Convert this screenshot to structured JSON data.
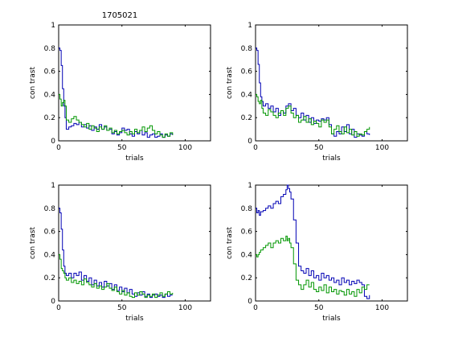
{
  "figure": {
    "title": "1705021",
    "series_colors": [
      "#0000b4",
      "#009600"
    ]
  },
  "chart_data": [
    {
      "type": "line",
      "title": "1705021",
      "xlabel": "trials",
      "ylabel": "con trast",
      "xlim": [
        0,
        120
      ],
      "ylim": [
        0,
        1
      ],
      "xticks": [
        0,
        50,
        100
      ],
      "yticks": [
        0,
        0.2,
        0.4,
        0.6,
        0.8,
        1
      ],
      "ytick_labels": [
        "0",
        "0.2",
        "0.4",
        "0.6",
        "0.8",
        "1"
      ],
      "grid": false,
      "series": [
        {
          "color": "#0000b4",
          "x": [
            0,
            1,
            2,
            3,
            4,
            5,
            6,
            8,
            10,
            12,
            14,
            16,
            18,
            20,
            22,
            24,
            26,
            28,
            30,
            32,
            34,
            36,
            38,
            40,
            42,
            44,
            46,
            48,
            50,
            52,
            54,
            56,
            58,
            60,
            62,
            64,
            66,
            68,
            70,
            72,
            74,
            76,
            78,
            80,
            82,
            84,
            86,
            88,
            90
          ],
          "y": [
            0.8,
            0.78,
            0.65,
            0.45,
            0.3,
            0.2,
            0.1,
            0.12,
            0.13,
            0.15,
            0.14,
            0.16,
            0.12,
            0.14,
            0.11,
            0.13,
            0.09,
            0.12,
            0.1,
            0.14,
            0.1,
            0.12,
            0.09,
            0.1,
            0.06,
            0.08,
            0.05,
            0.07,
            0.11,
            0.09,
            0.1,
            0.06,
            0.04,
            0.08,
            0.06,
            0.09,
            0.05,
            0.07,
            0.03,
            0.05,
            0.06,
            0.03,
            0.04,
            0.06,
            0.03,
            0.05,
            0.04,
            0.06,
            0.05
          ]
        },
        {
          "color": "#009600",
          "x": [
            0,
            1,
            2,
            3,
            4,
            5,
            6,
            8,
            10,
            12,
            14,
            16,
            18,
            20,
            22,
            24,
            26,
            28,
            30,
            32,
            34,
            36,
            38,
            40,
            42,
            44,
            46,
            48,
            50,
            52,
            54,
            56,
            58,
            60,
            62,
            64,
            66,
            68,
            70,
            72,
            74,
            76,
            78,
            80,
            82,
            84,
            86,
            88,
            90
          ],
          "y": [
            0.4,
            0.36,
            0.3,
            0.33,
            0.35,
            0.3,
            0.18,
            0.16,
            0.19,
            0.21,
            0.18,
            0.16,
            0.14,
            0.12,
            0.15,
            0.1,
            0.13,
            0.11,
            0.08,
            0.12,
            0.1,
            0.13,
            0.09,
            0.11,
            0.07,
            0.09,
            0.06,
            0.08,
            0.09,
            0.07,
            0.05,
            0.08,
            0.06,
            0.1,
            0.07,
            0.09,
            0.12,
            0.08,
            0.11,
            0.13,
            0.09,
            0.06,
            0.08,
            0.05,
            0.03,
            0.06,
            0.04,
            0.07,
            0.05
          ]
        }
      ]
    },
    {
      "type": "line",
      "xlabel": "trials",
      "ylabel": "con trast",
      "xlim": [
        0,
        120
      ],
      "ylim": [
        0,
        1
      ],
      "xticks": [
        0,
        50,
        100
      ],
      "yticks": [
        0,
        0.2,
        0.4,
        0.6,
        0.8,
        1
      ],
      "ytick_labels": [
        "0",
        "0.2",
        "0.4",
        "0.6",
        "0.8",
        "1"
      ],
      "grid": false,
      "series": [
        {
          "color": "#0000b4",
          "x": [
            0,
            1,
            2,
            3,
            4,
            5,
            6,
            8,
            10,
            12,
            14,
            16,
            18,
            20,
            22,
            24,
            26,
            28,
            30,
            32,
            34,
            36,
            38,
            40,
            42,
            44,
            46,
            48,
            50,
            52,
            54,
            56,
            58,
            60,
            62,
            64,
            66,
            68,
            70,
            72,
            74,
            76,
            78,
            80,
            82,
            84,
            86,
            88,
            90
          ],
          "y": [
            0.8,
            0.78,
            0.66,
            0.5,
            0.38,
            0.34,
            0.3,
            0.32,
            0.28,
            0.3,
            0.25,
            0.28,
            0.22,
            0.26,
            0.24,
            0.3,
            0.32,
            0.26,
            0.28,
            0.22,
            0.2,
            0.24,
            0.18,
            0.22,
            0.16,
            0.2,
            0.15,
            0.18,
            0.17,
            0.19,
            0.18,
            0.2,
            0.14,
            0.06,
            0.04,
            0.08,
            0.06,
            0.12,
            0.08,
            0.14,
            0.06,
            0.1,
            0.03,
            0.06,
            0.05,
            0.04,
            0.08,
            0.06,
            0.05
          ]
        },
        {
          "color": "#009600",
          "x": [
            0,
            1,
            2,
            3,
            4,
            5,
            6,
            8,
            10,
            12,
            14,
            16,
            18,
            20,
            22,
            24,
            26,
            28,
            30,
            32,
            34,
            36,
            38,
            40,
            42,
            44,
            46,
            48,
            50,
            52,
            54,
            56,
            58,
            60,
            62,
            64,
            66,
            68,
            70,
            72,
            74,
            76,
            78,
            80,
            82,
            84,
            86,
            88,
            90
          ],
          "y": [
            0.4,
            0.38,
            0.34,
            0.32,
            0.35,
            0.28,
            0.24,
            0.22,
            0.27,
            0.25,
            0.22,
            0.2,
            0.24,
            0.26,
            0.22,
            0.28,
            0.3,
            0.24,
            0.2,
            0.22,
            0.16,
            0.18,
            0.21,
            0.16,
            0.19,
            0.14,
            0.17,
            0.15,
            0.12,
            0.18,
            0.16,
            0.18,
            0.12,
            0.06,
            0.1,
            0.13,
            0.08,
            0.06,
            0.12,
            0.07,
            0.1,
            0.05,
            0.08,
            0.04,
            0.06,
            0.05,
            0.08,
            0.1,
            0.12
          ]
        }
      ]
    },
    {
      "type": "line",
      "xlabel": "trials",
      "ylabel": "con trast",
      "xlim": [
        0,
        120
      ],
      "ylim": [
        0,
        1
      ],
      "xticks": [
        0,
        50,
        100
      ],
      "yticks": [
        0,
        0.2,
        0.4,
        0.6,
        0.8,
        1
      ],
      "ytick_labels": [
        "0",
        "0.2",
        "0.4",
        "0.6",
        "0.8",
        "1"
      ],
      "grid": false,
      "series": [
        {
          "color": "#0000b4",
          "x": [
            0,
            1,
            2,
            3,
            4,
            5,
            6,
            8,
            10,
            12,
            14,
            16,
            18,
            20,
            22,
            24,
            26,
            28,
            30,
            32,
            34,
            36,
            38,
            40,
            42,
            44,
            46,
            48,
            50,
            52,
            54,
            56,
            58,
            60,
            62,
            64,
            66,
            68,
            70,
            72,
            74,
            76,
            78,
            80,
            82,
            84,
            86,
            88,
            90
          ],
          "y": [
            0.8,
            0.76,
            0.62,
            0.44,
            0.3,
            0.24,
            0.22,
            0.24,
            0.2,
            0.24,
            0.22,
            0.25,
            0.18,
            0.22,
            0.17,
            0.2,
            0.14,
            0.18,
            0.13,
            0.16,
            0.12,
            0.17,
            0.13,
            0.15,
            0.1,
            0.14,
            0.09,
            0.12,
            0.08,
            0.11,
            0.07,
            0.1,
            0.06,
            0.04,
            0.07,
            0.05,
            0.08,
            0.04,
            0.06,
            0.03,
            0.05,
            0.06,
            0.04,
            0.05,
            0.03,
            0.06,
            0.04,
            0.05,
            0.05
          ]
        },
        {
          "color": "#009600",
          "x": [
            0,
            1,
            2,
            3,
            4,
            5,
            6,
            8,
            10,
            12,
            14,
            16,
            18,
            20,
            22,
            24,
            26,
            28,
            30,
            32,
            34,
            36,
            38,
            40,
            42,
            44,
            46,
            48,
            50,
            52,
            54,
            56,
            58,
            60,
            62,
            64,
            66,
            68,
            70,
            72,
            74,
            76,
            78,
            80,
            82,
            84,
            86,
            88,
            90
          ],
          "y": [
            0.4,
            0.36,
            0.28,
            0.26,
            0.24,
            0.2,
            0.18,
            0.2,
            0.16,
            0.18,
            0.15,
            0.17,
            0.14,
            0.19,
            0.16,
            0.14,
            0.12,
            0.15,
            0.11,
            0.13,
            0.1,
            0.12,
            0.15,
            0.11,
            0.09,
            0.12,
            0.08,
            0.06,
            0.09,
            0.05,
            0.07,
            0.04,
            0.03,
            0.07,
            0.05,
            0.08,
            0.06,
            0.03,
            0.05,
            0.04,
            0.06,
            0.03,
            0.05,
            0.07,
            0.04,
            0.06,
            0.08,
            0.06,
            0.07
          ]
        }
      ]
    },
    {
      "type": "line",
      "xlabel": "trials",
      "ylabel": "con trast",
      "xlim": [
        0,
        120
      ],
      "ylim": [
        0,
        1
      ],
      "xticks": [
        0,
        50,
        100
      ],
      "yticks": [
        0,
        0.2,
        0.4,
        0.6,
        0.8,
        1
      ],
      "ytick_labels": [
        "0",
        "0.2",
        "0.4",
        "0.6",
        "0.8",
        "1"
      ],
      "grid": false,
      "series": [
        {
          "color": "#0000b4",
          "x": [
            0,
            1,
            2,
            3,
            4,
            6,
            8,
            10,
            12,
            14,
            16,
            18,
            20,
            22,
            24,
            25,
            26,
            27,
            28,
            30,
            32,
            34,
            36,
            38,
            40,
            42,
            44,
            46,
            48,
            50,
            52,
            54,
            56,
            58,
            60,
            62,
            64,
            66,
            68,
            70,
            72,
            74,
            76,
            78,
            80,
            82,
            84,
            86,
            88,
            90
          ],
          "y": [
            0.8,
            0.76,
            0.78,
            0.74,
            0.77,
            0.78,
            0.8,
            0.82,
            0.8,
            0.84,
            0.86,
            0.84,
            0.9,
            0.92,
            0.96,
            1.0,
            0.97,
            0.94,
            0.88,
            0.7,
            0.5,
            0.3,
            0.26,
            0.24,
            0.28,
            0.22,
            0.26,
            0.2,
            0.22,
            0.18,
            0.24,
            0.2,
            0.22,
            0.18,
            0.2,
            0.16,
            0.18,
            0.14,
            0.2,
            0.16,
            0.18,
            0.14,
            0.17,
            0.15,
            0.18,
            0.16,
            0.14,
            0.04,
            0.02,
            0.05
          ]
        },
        {
          "color": "#009600",
          "x": [
            0,
            1,
            2,
            3,
            4,
            6,
            8,
            10,
            12,
            14,
            16,
            18,
            20,
            22,
            24,
            25,
            26,
            27,
            28,
            30,
            32,
            34,
            36,
            38,
            40,
            42,
            44,
            46,
            48,
            50,
            52,
            54,
            56,
            58,
            60,
            62,
            64,
            66,
            68,
            70,
            72,
            74,
            76,
            78,
            80,
            82,
            84,
            86,
            88,
            90
          ],
          "y": [
            0.4,
            0.38,
            0.4,
            0.42,
            0.44,
            0.46,
            0.48,
            0.5,
            0.46,
            0.5,
            0.52,
            0.5,
            0.54,
            0.52,
            0.56,
            0.52,
            0.54,
            0.5,
            0.46,
            0.32,
            0.18,
            0.14,
            0.1,
            0.14,
            0.18,
            0.12,
            0.16,
            0.1,
            0.08,
            0.12,
            0.09,
            0.14,
            0.07,
            0.12,
            0.08,
            0.1,
            0.06,
            0.09,
            0.08,
            0.05,
            0.1,
            0.06,
            0.08,
            0.04,
            0.1,
            0.07,
            0.12,
            0.1,
            0.14,
            0.14
          ]
        }
      ]
    }
  ]
}
